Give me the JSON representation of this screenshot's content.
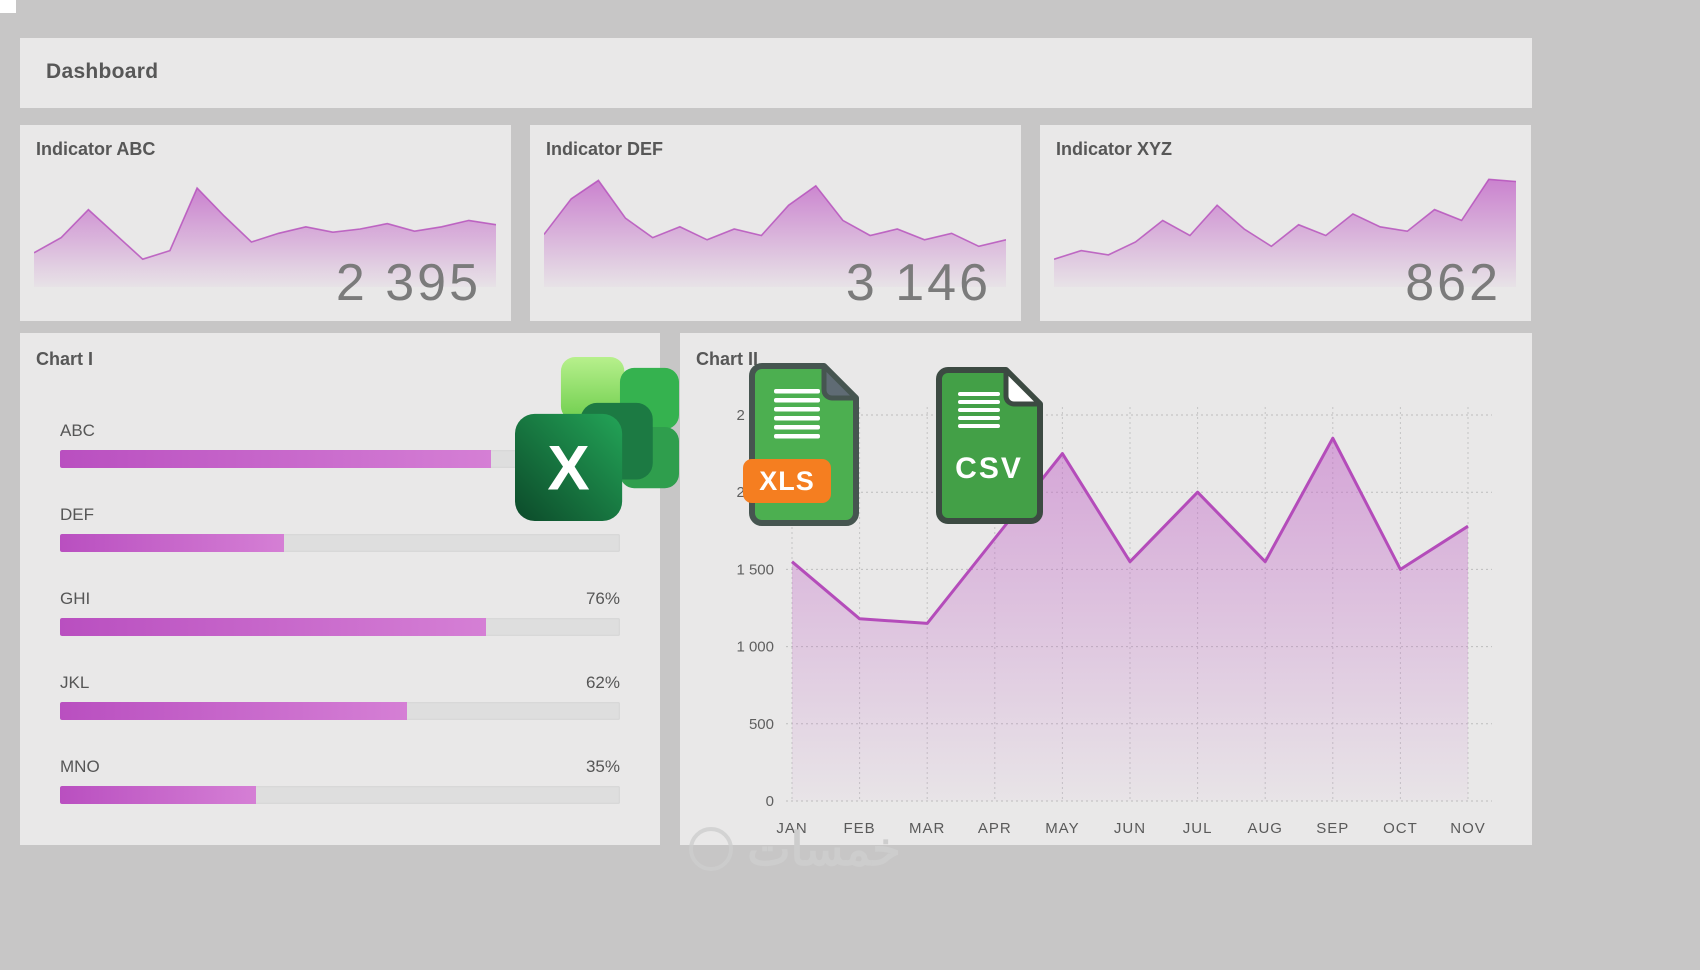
{
  "header": {
    "title": "Dashboard"
  },
  "theme": {
    "accent": "#c060c6",
    "accent_line": "#b44cba",
    "bar_from": "#b94fc0",
    "bar_to": "#d57fd5",
    "panel_bg": "#e9e8e8",
    "canvas_bg": "#c7c6c6",
    "label_text": "#575757",
    "number_text": "#7b7b7b",
    "excel_green_dark": "#14532d",
    "excel_green": "#22a055",
    "doc_green": "#43a047",
    "xls_badge_orange": "#f57e20"
  },
  "chart_data": [
    {
      "id": "spark-abc",
      "type": "area",
      "title": "Indicator ABC",
      "value_label": "2 395",
      "values": [
        28,
        42,
        68,
        45,
        22,
        30,
        88,
        62,
        38,
        46,
        52,
        47,
        50,
        55,
        48,
        52,
        58,
        54
      ]
    },
    {
      "id": "spark-def",
      "type": "area",
      "title": "Indicator DEF",
      "value_label": "3 146",
      "values": [
        45,
        78,
        95,
        60,
        42,
        52,
        40,
        50,
        44,
        72,
        90,
        58,
        44,
        50,
        40,
        46,
        34,
        40
      ]
    },
    {
      "id": "spark-xyz",
      "type": "area",
      "title": "Indicator XYZ",
      "value_label": "862",
      "values": [
        22,
        30,
        26,
        38,
        58,
        44,
        72,
        50,
        34,
        54,
        44,
        64,
        52,
        48,
        68,
        58,
        96,
        94
      ]
    },
    {
      "id": "chart1",
      "type": "bar",
      "title": "Chart I",
      "orientation": "horizontal",
      "unit": "%",
      "categories": [
        "ABC",
        "DEF",
        "GHI",
        "JKL",
        "MNO"
      ],
      "values": [
        77,
        40,
        76,
        62,
        35
      ],
      "value_labels": [
        "",
        "",
        "76%",
        "62%",
        "35%"
      ]
    },
    {
      "id": "chart2",
      "type": "line",
      "title": "Chart II",
      "x": [
        "JAN",
        "FEB",
        "MAR",
        "APR",
        "MAY",
        "JUN",
        "JUL",
        "AUG",
        "SEP",
        "OCT",
        "NOV"
      ],
      "values": [
        1550,
        1180,
        1150,
        1700,
        2250,
        1550,
        2000,
        1550,
        2350,
        1500,
        1780
      ],
      "ylim": [
        0,
        2500
      ],
      "yticks": [
        0,
        500,
        1000,
        1500,
        2000,
        2500
      ],
      "ytick_labels": [
        "0",
        "500",
        "1 000",
        "1 500",
        "2 000",
        "2 500"
      ],
      "grid": true,
      "area_fill": true
    }
  ],
  "overlays": {
    "excel_letter": "X",
    "xls_label": "XLS",
    "csv_label": "CSV"
  },
  "watermark": {
    "text": "خمسات"
  }
}
